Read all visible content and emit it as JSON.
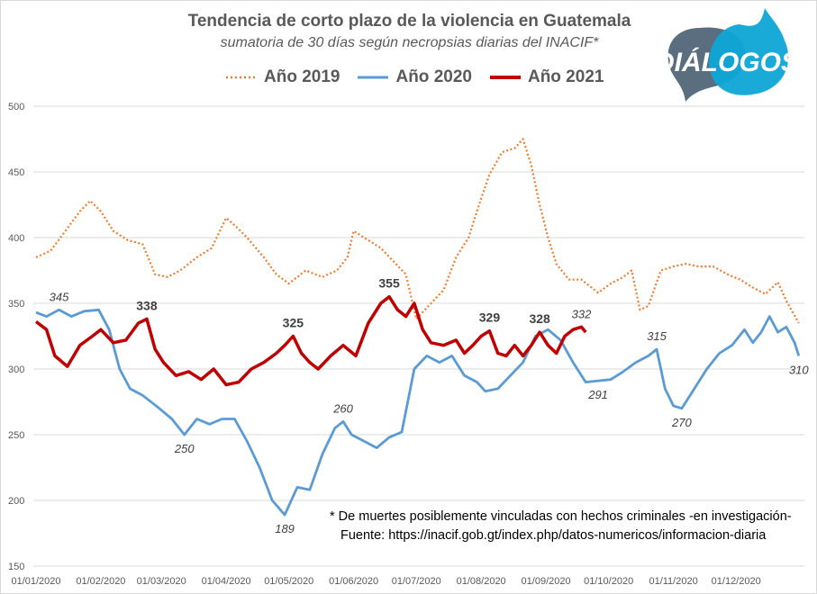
{
  "chart_data": {
    "type": "line",
    "title": "Tendencia de corto plazo de la violencia en Guatemala",
    "subtitle": "sumatoria de 30 días según necropsias diarias del INACIF*",
    "logo_text": "DIÁLOGOS",
    "ylim": [
      150,
      500
    ],
    "yticks": [
      "500",
      "450",
      "400",
      "350",
      "300",
      "250",
      "200",
      "150"
    ],
    "xticks": [
      "01/01/2020",
      "01/02/2020",
      "01/03/2020",
      "01/04/2020",
      "01/05/2020",
      "01/06/2020",
      "01/07/2020",
      "01/08/2020",
      "01/09/2020",
      "01/10/2020",
      "01/11/2020",
      "01/12/2020"
    ],
    "x_unit": "day of year",
    "grid": true,
    "legend_position": "top",
    "series": [
      {
        "name": "Año 2019",
        "color": "#ED7D31",
        "style": "dotted",
        "points": [
          [
            1,
            385
          ],
          [
            8,
            390
          ],
          [
            15,
            405
          ],
          [
            22,
            420
          ],
          [
            27,
            428
          ],
          [
            32,
            420
          ],
          [
            38,
            405
          ],
          [
            45,
            398
          ],
          [
            52,
            395
          ],
          [
            58,
            372
          ],
          [
            64,
            370
          ],
          [
            70,
            375
          ],
          [
            78,
            385
          ],
          [
            85,
            392
          ],
          [
            92,
            415
          ],
          [
            97,
            408
          ],
          [
            102,
            400
          ],
          [
            110,
            385
          ],
          [
            116,
            372
          ],
          [
            122,
            365
          ],
          [
            130,
            375
          ],
          [
            138,
            370
          ],
          [
            145,
            375
          ],
          [
            150,
            385
          ],
          [
            153,
            405
          ],
          [
            160,
            398
          ],
          [
            166,
            392
          ],
          [
            172,
            382
          ],
          [
            178,
            372
          ],
          [
            183,
            338
          ],
          [
            190,
            350
          ],
          [
            196,
            360
          ],
          [
            202,
            385
          ],
          [
            208,
            400
          ],
          [
            213,
            425
          ],
          [
            218,
            448
          ],
          [
            224,
            465
          ],
          [
            230,
            468
          ],
          [
            234,
            475
          ],
          [
            238,
            455
          ],
          [
            242,
            425
          ],
          [
            246,
            400
          ],
          [
            250,
            380
          ],
          [
            256,
            368
          ],
          [
            262,
            368
          ],
          [
            270,
            358
          ],
          [
            276,
            365
          ],
          [
            282,
            370
          ],
          [
            286,
            375
          ],
          [
            290,
            345
          ],
          [
            294,
            348
          ],
          [
            300,
            375
          ],
          [
            306,
            378
          ],
          [
            312,
            380
          ],
          [
            318,
            378
          ],
          [
            325,
            378
          ],
          [
            332,
            372
          ],
          [
            338,
            368
          ],
          [
            344,
            362
          ],
          [
            350,
            357
          ],
          [
            356,
            366
          ],
          [
            360,
            352
          ],
          [
            366,
            335
          ]
        ]
      },
      {
        "name": "Año 2020",
        "color": "#5B9BD5",
        "style": "solid",
        "points": [
          [
            1,
            343
          ],
          [
            6,
            340
          ],
          [
            12,
            345
          ],
          [
            18,
            340
          ],
          [
            24,
            344
          ],
          [
            31,
            345
          ],
          [
            36,
            330
          ],
          [
            41,
            300
          ],
          [
            46,
            285
          ],
          [
            52,
            280
          ],
          [
            60,
            270
          ],
          [
            66,
            262
          ],
          [
            72,
            250
          ],
          [
            78,
            262
          ],
          [
            84,
            258
          ],
          [
            90,
            262
          ],
          [
            96,
            262
          ],
          [
            102,
            245
          ],
          [
            108,
            225
          ],
          [
            114,
            200
          ],
          [
            120,
            189
          ],
          [
            126,
            210
          ],
          [
            132,
            208
          ],
          [
            138,
            235
          ],
          [
            144,
            255
          ],
          [
            148,
            260
          ],
          [
            152,
            250
          ],
          [
            158,
            245
          ],
          [
            164,
            240
          ],
          [
            170,
            248
          ],
          [
            176,
            252
          ],
          [
            182,
            300
          ],
          [
            188,
            310
          ],
          [
            194,
            305
          ],
          [
            200,
            310
          ],
          [
            206,
            295
          ],
          [
            212,
            290
          ],
          [
            216,
            283
          ],
          [
            222,
            285
          ],
          [
            228,
            295
          ],
          [
            234,
            305
          ],
          [
            240,
            325
          ],
          [
            246,
            330
          ],
          [
            252,
            322
          ],
          [
            258,
            305
          ],
          [
            264,
            290
          ],
          [
            270,
            291
          ],
          [
            276,
            292
          ],
          [
            282,
            298
          ],
          [
            288,
            305
          ],
          [
            294,
            310
          ],
          [
            298,
            315
          ],
          [
            302,
            285
          ],
          [
            306,
            272
          ],
          [
            310,
            270
          ],
          [
            316,
            285
          ],
          [
            322,
            300
          ],
          [
            328,
            312
          ],
          [
            334,
            318
          ],
          [
            340,
            330
          ],
          [
            344,
            320
          ],
          [
            348,
            328
          ],
          [
            352,
            340
          ],
          [
            356,
            328
          ],
          [
            360,
            332
          ],
          [
            364,
            320
          ],
          [
            366,
            310
          ]
        ]
      },
      {
        "name": "Año 2021",
        "color": "#C00000",
        "style": "solid",
        "points": [
          [
            1,
            336
          ],
          [
            6,
            330
          ],
          [
            10,
            310
          ],
          [
            16,
            302
          ],
          [
            22,
            318
          ],
          [
            28,
            325
          ],
          [
            32,
            330
          ],
          [
            38,
            320
          ],
          [
            44,
            322
          ],
          [
            50,
            335
          ],
          [
            54,
            338
          ],
          [
            58,
            315
          ],
          [
            62,
            305
          ],
          [
            68,
            295
          ],
          [
            74,
            298
          ],
          [
            80,
            292
          ],
          [
            86,
            300
          ],
          [
            92,
            288
          ],
          [
            98,
            290
          ],
          [
            104,
            300
          ],
          [
            110,
            305
          ],
          [
            116,
            312
          ],
          [
            120,
            318
          ],
          [
            124,
            325
          ],
          [
            128,
            312
          ],
          [
            132,
            305
          ],
          [
            136,
            300
          ],
          [
            142,
            310
          ],
          [
            148,
            318
          ],
          [
            154,
            310
          ],
          [
            160,
            335
          ],
          [
            166,
            350
          ],
          [
            170,
            355
          ],
          [
            174,
            345
          ],
          [
            178,
            340
          ],
          [
            182,
            350
          ],
          [
            186,
            330
          ],
          [
            190,
            320
          ],
          [
            196,
            318
          ],
          [
            202,
            322
          ],
          [
            206,
            312
          ],
          [
            210,
            318
          ],
          [
            214,
            325
          ],
          [
            218,
            329
          ],
          [
            222,
            312
          ],
          [
            226,
            310
          ],
          [
            230,
            318
          ],
          [
            234,
            310
          ],
          [
            238,
            318
          ],
          [
            242,
            328
          ],
          [
            246,
            318
          ],
          [
            250,
            312
          ],
          [
            254,
            325
          ],
          [
            258,
            330
          ],
          [
            262,
            332
          ],
          [
            264,
            328
          ]
        ]
      }
    ],
    "annotations": [
      {
        "text": "345",
        "x": 12,
        "y": 345,
        "series": "Año 2020",
        "pos": "above"
      },
      {
        "text": "338",
        "x": 54,
        "y": 338,
        "series": "Año 2021",
        "pos": "above",
        "bold": true
      },
      {
        "text": "250",
        "x": 72,
        "y": 250,
        "series": "Año 2020",
        "pos": "below"
      },
      {
        "text": "325",
        "x": 124,
        "y": 325,
        "series": "Año 2021",
        "pos": "above",
        "bold": true
      },
      {
        "text": "189",
        "x": 120,
        "y": 189,
        "series": "Año 2020",
        "pos": "below"
      },
      {
        "text": "260",
        "x": 148,
        "y": 260,
        "series": "Año 2020",
        "pos": "above"
      },
      {
        "text": "355",
        "x": 170,
        "y": 355,
        "series": "Año 2021",
        "pos": "above",
        "bold": true
      },
      {
        "text": "329",
        "x": 218,
        "y": 329,
        "series": "Año 2021",
        "pos": "above",
        "bold": true
      },
      {
        "text": "328",
        "x": 242,
        "y": 328,
        "series": "Año 2021",
        "pos": "above",
        "bold": true
      },
      {
        "text": "332",
        "x": 262,
        "y": 332,
        "series": "Año 2021",
        "pos": "above"
      },
      {
        "text": "291",
        "x": 270,
        "y": 291,
        "series": "Año 2020",
        "pos": "below"
      },
      {
        "text": "315",
        "x": 298,
        "y": 315,
        "series": "Año 2020",
        "pos": "above"
      },
      {
        "text": "270",
        "x": 310,
        "y": 270,
        "series": "Año 2020",
        "pos": "below"
      },
      {
        "text": "310",
        "x": 366,
        "y": 310,
        "series": "Año 2020",
        "pos": "below"
      }
    ],
    "footnote": "* De muertes posiblemente vinculadas con hechos criminales -en investigación-",
    "source": "Fuente: https://inacif.gob.gt/index.php/datos-numericos/informacion-diaria"
  }
}
